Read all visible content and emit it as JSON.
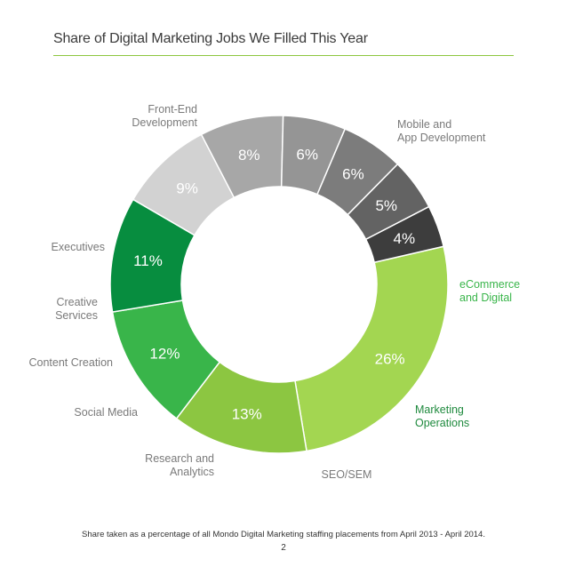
{
  "title": "Share of Digital Marketing Jobs We Filled This Year",
  "footnote": "Share taken as a percentage of all Mondo Digital Marketing staffing placements from April 2013 - April 2014.",
  "page_number": "2",
  "chart_data": {
    "type": "pie",
    "donut": true,
    "title": "Share of Digital Marketing Jobs We Filled This Year",
    "slices": [
      {
        "label": "Front-End Development",
        "label_lines": [
          "Front-End",
          "Development"
        ],
        "value": 26,
        "value_label": "26%",
        "color": "#a3d651",
        "text_color": "#ffffff"
      },
      {
        "label": "Mobile and App Development",
        "label_lines": [
          "Mobile and",
          "App Development"
        ],
        "value": 13,
        "value_label": "13%",
        "color": "#8cc641",
        "text_color": "#ffffff"
      },
      {
        "label": "eCommerce and Digital",
        "label_lines": [
          "eCommerce",
          "and Digital"
        ],
        "value": 12,
        "value_label": "12%",
        "color": "#39b54a",
        "text_color": "#ffffff",
        "label_color": "#39b54a"
      },
      {
        "label": "Marketing Operations",
        "label_lines": [
          "Marketing",
          "Operations"
        ],
        "value": 11,
        "value_label": "11%",
        "color": "#078d3f",
        "text_color": "#ffffff",
        "label_color": "#1f8a3e"
      },
      {
        "label": "SEO/SEM",
        "label_lines": [
          "SEO/SEM"
        ],
        "value": 9,
        "value_label": "9%",
        "color": "#d2d2d2",
        "text_color": "#ffffff"
      },
      {
        "label": "Research and Analytics",
        "label_lines": [
          "Research and",
          "Analytics"
        ],
        "value": 8,
        "value_label": "8%",
        "color": "#a7a7a7",
        "text_color": "#ffffff"
      },
      {
        "label": "Social Media",
        "label_lines": [
          "Social Media"
        ],
        "value": 6,
        "value_label": "6%",
        "color": "#959595",
        "text_color": "#ffffff"
      },
      {
        "label": "Content Creation",
        "label_lines": [
          "Content Creation"
        ],
        "value": 6,
        "value_label": "6%",
        "color": "#7c7c7c",
        "text_color": "#ffffff"
      },
      {
        "label": "Creative Services",
        "label_lines": [
          "Creative",
          "Services"
        ],
        "value": 5,
        "value_label": "5%",
        "color": "#636363",
        "text_color": "#ffffff"
      },
      {
        "label": "Executives",
        "label_lines": [
          "Executives"
        ],
        "value": 4,
        "value_label": "4%",
        "color": "#3d3d3d",
        "text_color": "#ffffff"
      }
    ],
    "legend": "none",
    "label_color_default": "#7a7a7a"
  }
}
